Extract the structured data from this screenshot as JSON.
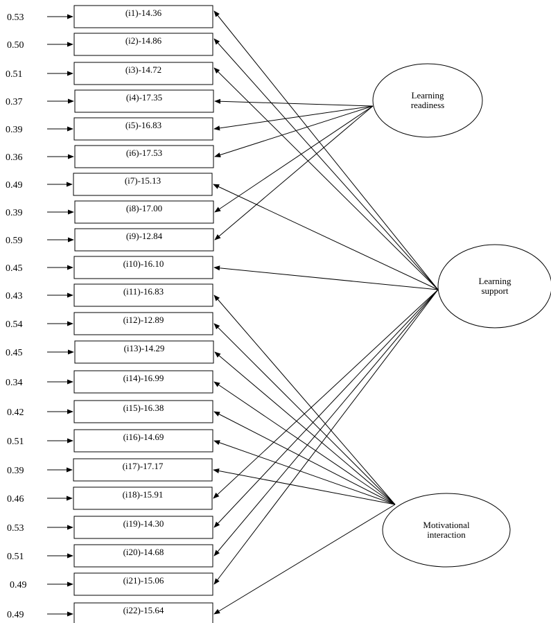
{
  "items": [
    {
      "id": "i1",
      "label": "(i1)-14.36",
      "error": "0.53"
    },
    {
      "id": "i2",
      "label": "(i2)-14.86",
      "error": "0.50"
    },
    {
      "id": "i3",
      "label": "(i3)-14.72",
      "error": "0.51"
    },
    {
      "id": "i4",
      "label": "(i4)-17.35",
      "error": "0.37"
    },
    {
      "id": "i5",
      "label": "(i5)-16.83",
      "error": "0.39"
    },
    {
      "id": "i6",
      "label": "(i6)-17.53",
      "error": "0.36"
    },
    {
      "id": "i7",
      "label": "(i7)-15.13",
      "error": "0.49"
    },
    {
      "id": "i8",
      "label": "(i8)-17.00",
      "error": "0.39"
    },
    {
      "id": "i9",
      "label": "(i9)-12.84",
      "error": "0.59"
    },
    {
      "id": "i10",
      "label": "(i10)-16.10",
      "error": "0.45"
    },
    {
      "id": "i11",
      "label": "(i11)-16.83",
      "error": "0.43"
    },
    {
      "id": "i12",
      "label": "(i12)-12.89",
      "error": "0.54"
    },
    {
      "id": "i13",
      "label": "(i13)-14.29",
      "error": "0.45"
    },
    {
      "id": "i14",
      "label": "(i14)-16.99",
      "error": "0.34"
    },
    {
      "id": "i15",
      "label": "(i15)-16.38",
      "error": "0.42"
    },
    {
      "id": "i16",
      "label": "(i16)-14.69",
      "error": "0.51"
    },
    {
      "id": "i17",
      "label": "(i17)-17.17",
      "error": "0.39"
    },
    {
      "id": "i18",
      "label": "(i18)-15.91",
      "error": "0.46"
    },
    {
      "id": "i19",
      "label": "(i19)-14.30",
      "error": "0.53"
    },
    {
      "id": "i20",
      "label": "(i20)-14.68",
      "error": "0.51"
    },
    {
      "id": "i21",
      "label": "(i21)-15.06",
      "error": "0.49"
    },
    {
      "id": "i22",
      "label": "(i22)-15.64",
      "error": "0.49"
    }
  ],
  "factors": [
    {
      "id": "readiness",
      "lines": [
        "Learning",
        "readiness"
      ]
    },
    {
      "id": "support",
      "lines": [
        "Learning",
        "support"
      ]
    },
    {
      "id": "motivational",
      "lines": [
        "Motivational",
        "interaction"
      ]
    }
  ],
  "loadings": {
    "readiness": [
      "i4",
      "i5",
      "i6",
      "i8",
      "i9"
    ],
    "support": [
      "i1",
      "i2",
      "i3",
      "i7",
      "i10",
      "i18",
      "i19",
      "i20",
      "i21"
    ],
    "motivational": [
      "i11",
      "i12",
      "i13",
      "i14",
      "i15",
      "i16",
      "i17",
      "i22"
    ]
  }
}
